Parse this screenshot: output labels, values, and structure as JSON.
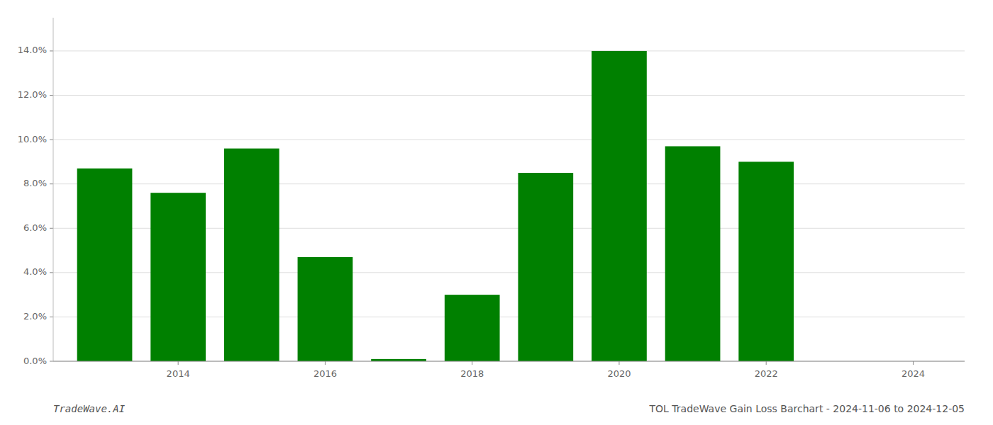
{
  "chart_data": {
    "type": "bar",
    "title": "TOL TradeWave Gain Loss Barchart - 2024-11-06 to 2024-12-05",
    "annotations": [
      "TradeWave.AI"
    ],
    "x": [
      2013,
      2014,
      2015,
      2016,
      2017,
      2018,
      2019,
      2020,
      2021,
      2022
    ],
    "values": [
      0.087,
      0.076,
      0.096,
      0.047,
      0.001,
      0.03,
      0.085,
      0.14,
      0.097,
      0.09
    ],
    "color": "#008000",
    "xlim": [
      2012.3,
      2024.7
    ],
    "xticks": [
      2014,
      2016,
      2018,
      2020,
      2022,
      2024
    ],
    "ylim": [
      0,
      0.155
    ],
    "yticks": [
      {
        "value": 0.0,
        "label": "0.0%"
      },
      {
        "value": 0.02,
        "label": "2.0%"
      },
      {
        "value": 0.04,
        "label": "4.0%"
      },
      {
        "value": 0.06,
        "label": "6.0%"
      },
      {
        "value": 0.08,
        "label": "8.0%"
      },
      {
        "value": 0.1,
        "label": "10.0%"
      },
      {
        "value": 0.12,
        "label": "12.0%"
      },
      {
        "value": 0.14,
        "label": "14.0%"
      }
    ],
    "grid": true
  }
}
